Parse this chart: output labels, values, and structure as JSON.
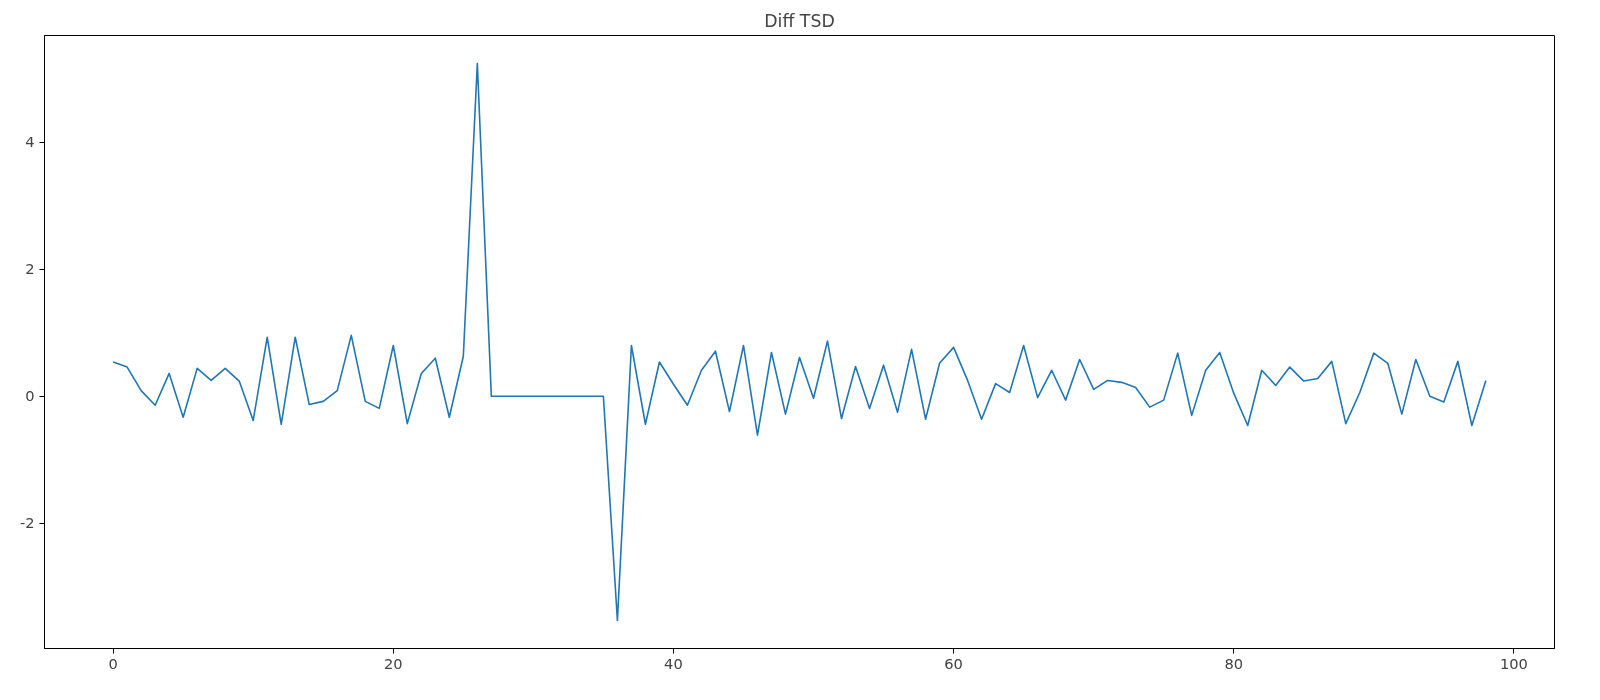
{
  "chart_data": {
    "type": "line",
    "title": "Diff TSD",
    "x": [
      0,
      1,
      2,
      3,
      4,
      5,
      6,
      7,
      8,
      9,
      10,
      11,
      12,
      13,
      14,
      15,
      16,
      17,
      18,
      19,
      20,
      21,
      22,
      23,
      24,
      25,
      26,
      27,
      28,
      29,
      30,
      31,
      32,
      33,
      34,
      35,
      36,
      37,
      38,
      39,
      40,
      41,
      42,
      43,
      44,
      45,
      46,
      47,
      48,
      49,
      50,
      51,
      52,
      53,
      54,
      55,
      56,
      57,
      58,
      59,
      60,
      61,
      62,
      63,
      64,
      65,
      66,
      67,
      68,
      69,
      70,
      71,
      72,
      73,
      74,
      75,
      76,
      77,
      78,
      79,
      80,
      81,
      82,
      83,
      84,
      85,
      86,
      87,
      88,
      89,
      90,
      91,
      92,
      93,
      94,
      95,
      96,
      97,
      98
    ],
    "series": [
      {
        "color": "#1f77b4",
        "values": [
          0.54,
          0.46,
          0.09,
          -0.14,
          0.36,
          -0.33,
          0.44,
          0.25,
          0.44,
          0.24,
          -0.38,
          0.93,
          -0.44,
          0.93,
          -0.13,
          -0.08,
          0.09,
          0.96,
          -0.08,
          -0.19,
          0.8,
          -0.43,
          0.36,
          0.6,
          -0.33,
          0.63,
          5.24,
          0,
          0,
          0,
          0,
          0,
          0,
          0,
          0,
          0,
          -3.53,
          0.8,
          -0.44,
          0.54,
          0.19,
          -0.14,
          0.41,
          0.71,
          -0.24,
          0.8,
          -0.61,
          0.69,
          -0.28,
          0.61,
          -0.03,
          0.87,
          -0.35,
          0.47,
          -0.19,
          0.49,
          -0.25,
          0.74,
          -0.36,
          0.52,
          0.77,
          0.25,
          -0.36,
          0.2,
          0.06,
          0.8,
          -0.02,
          0.41,
          -0.06,
          0.58,
          0.11,
          0.25,
          0.22,
          0.14,
          -0.17,
          -0.06,
          0.68,
          -0.3,
          0.41,
          0.69,
          0.05,
          -0.46,
          0.41,
          0.17,
          0.46,
          0.24,
          0.28,
          0.55,
          -0.43,
          0.06,
          0.68,
          0.52,
          -0.28,
          0.58,
          0,
          -0.09,
          0.55,
          -0.46,
          0.25
        ]
      }
    ],
    "xlim": [
      -4.9,
      102.9
    ],
    "ylim": [
      -3.97,
      5.68
    ],
    "xticks": [
      0,
      20,
      40,
      60,
      80,
      100
    ],
    "yticks": [
      -2,
      0,
      2,
      4
    ],
    "grid": false,
    "line_style": "solid"
  }
}
